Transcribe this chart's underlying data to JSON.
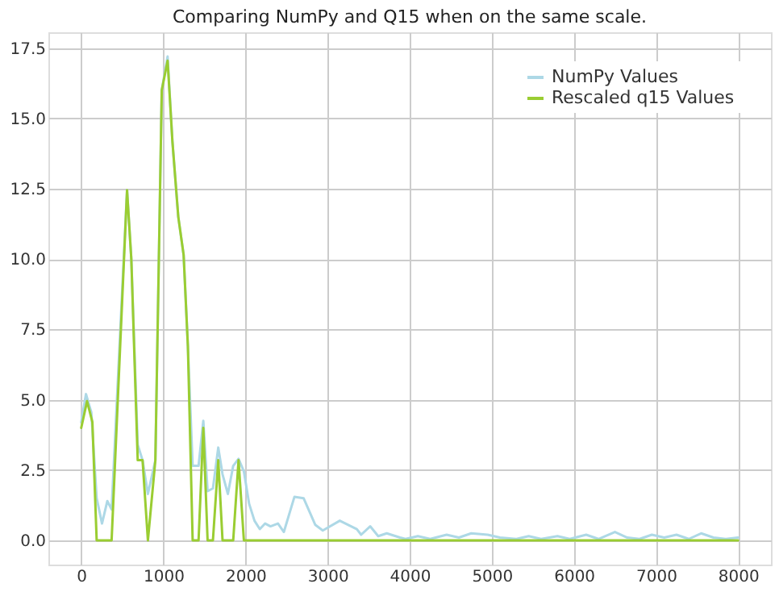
{
  "chart_data": {
    "type": "line",
    "title": "Comparing NumPy and Q15 when on the same scale.",
    "series": [
      {
        "name": "NumPy Values",
        "color": "#add8e6",
        "x": [
          0,
          58,
          123,
          188,
          253,
          318,
          370,
          558,
          610,
          688,
          747,
          812,
          903,
          981,
          1052,
          1110,
          1182,
          1247,
          1299,
          1357,
          1429,
          1487,
          1539,
          1604,
          1669,
          1721,
          1786,
          1851,
          1916,
          1981,
          2045,
          2110,
          2175,
          2240,
          2305,
          2396,
          2468,
          2597,
          2708,
          2851,
          2942,
          3149,
          3357,
          3409,
          3519,
          3617,
          3721,
          3883,
          3950,
          4100,
          4250,
          4450,
          4600,
          4750,
          4950,
          5100,
          5300,
          5450,
          5600,
          5800,
          5950,
          6150,
          6300,
          6500,
          6650,
          6800,
          6950,
          7100,
          7250,
          7400,
          7550,
          7700,
          7850,
          8000
        ],
        "values": [
          4.2,
          5.2,
          4.55,
          1.5,
          0.6,
          1.4,
          1.1,
          12.45,
          10.0,
          3.4,
          2.85,
          1.65,
          2.85,
          16.0,
          17.2,
          14.2,
          11.5,
          10.15,
          6.9,
          2.65,
          2.65,
          4.25,
          1.75,
          1.85,
          3.3,
          2.35,
          1.65,
          2.65,
          2.9,
          2.45,
          1.3,
          0.7,
          0.4,
          0.6,
          0.5,
          0.6,
          0.3,
          1.55,
          1.5,
          0.55,
          0.35,
          0.7,
          0.4,
          0.2,
          0.5,
          0.15,
          0.25,
          0.1,
          0.05,
          0.15,
          0.05,
          0.2,
          0.1,
          0.25,
          0.2,
          0.1,
          0.05,
          0.15,
          0.05,
          0.15,
          0.05,
          0.2,
          0.05,
          0.3,
          0.1,
          0.05,
          0.2,
          0.1,
          0.2,
          0.05,
          0.25,
          0.1,
          0.05,
          0.1
        ]
      },
      {
        "name": "Rescaled q15 Values",
        "color": "#9acd32",
        "x": [
          0,
          71,
          136,
          188,
          370,
          558,
          610,
          688,
          747,
          812,
          903,
          981,
          1052,
          1110,
          1182,
          1247,
          1299,
          1357,
          1429,
          1487,
          1539,
          1604,
          1669,
          1721,
          1851,
          1916,
          1981,
          8000
        ],
        "values": [
          4.0,
          4.95,
          4.2,
          0,
          0,
          12.45,
          10.0,
          2.85,
          2.85,
          0,
          2.85,
          16.0,
          17.05,
          14.2,
          11.5,
          10.15,
          6.9,
          0,
          0,
          4.0,
          0,
          0,
          2.85,
          0,
          0,
          2.85,
          0,
          0
        ]
      }
    ],
    "xlim": [
      -400,
      8400
    ],
    "xticks": [
      0,
      1000,
      2000,
      3000,
      4000,
      5000,
      6000,
      7000,
      8000
    ],
    "ylim": [
      -0.86,
      18.06
    ],
    "yticks": [
      {
        "value": 0,
        "label": "0.0"
      },
      {
        "value": 2.5,
        "label": "2.5"
      },
      {
        "value": 5,
        "label": "5.0"
      },
      {
        "value": 7.5,
        "label": "7.5"
      },
      {
        "value": 10,
        "label": "10.0"
      },
      {
        "value": 12.5,
        "label": "12.5"
      },
      {
        "value": 15,
        "label": "15.0"
      },
      {
        "value": 17.5,
        "label": "17.5"
      }
    ],
    "grid": true,
    "legend": "top right",
    "line_style": "solid",
    "marker": "none"
  }
}
